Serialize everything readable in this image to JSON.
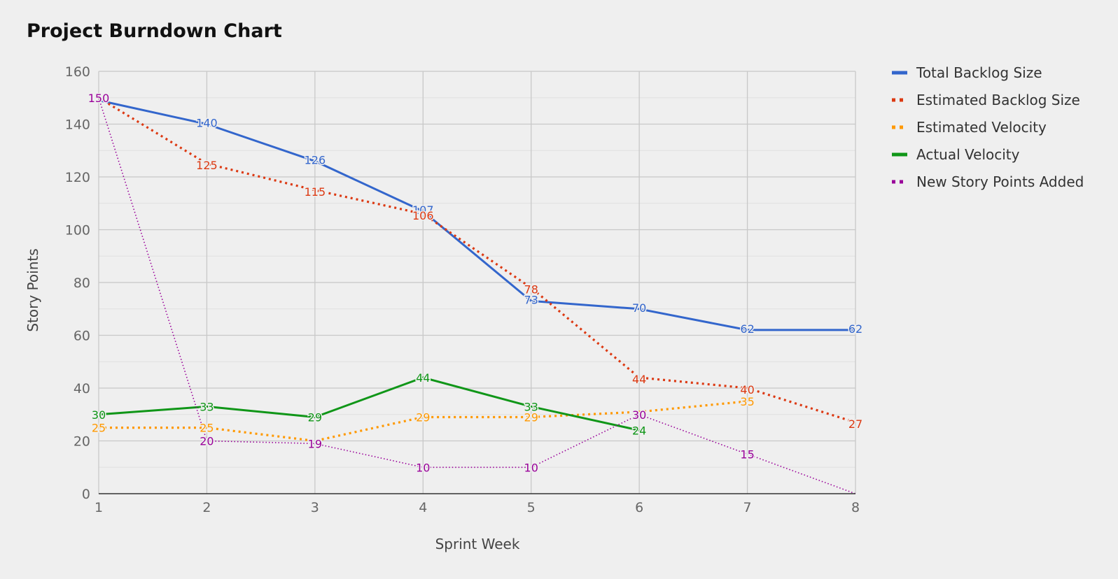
{
  "chart_data": {
    "type": "line",
    "title": "Project Burndown Chart",
    "xlabel": "Sprint Week",
    "ylabel": "Story Points",
    "x": [
      1,
      2,
      3,
      4,
      5,
      6,
      7,
      8
    ],
    "xlim": [
      1,
      8
    ],
    "ylim": [
      0,
      160
    ],
    "yticks": [
      0,
      20,
      40,
      60,
      80,
      100,
      120,
      140,
      160
    ],
    "grid": true,
    "legend_position": "right",
    "series": [
      {
        "name": "Total Backlog Size",
        "color": "#3366cc",
        "style": "solid",
        "values": [
          149,
          140,
          126,
          107,
          73,
          70,
          62,
          62
        ],
        "labels": [
          "",
          "140",
          "126",
          "107",
          "73",
          "70",
          "62",
          "62"
        ]
      },
      {
        "name": "Estimated Backlog Size",
        "color": "#dc3912",
        "style": "dotted",
        "values": [
          150,
          125,
          115,
          106,
          78,
          44,
          40,
          27
        ],
        "labels": [
          "",
          "125",
          "115",
          "106",
          "78",
          "44",
          "40",
          "27"
        ]
      },
      {
        "name": "Estimated Velocity",
        "color": "#ff9900",
        "style": "dotted",
        "values": [
          25,
          25,
          20,
          29,
          29,
          31,
          35,
          null
        ],
        "labels": [
          "25",
          "25",
          "",
          "29",
          "29",
          "",
          "35",
          ""
        ]
      },
      {
        "name": "Actual Velocity",
        "color": "#109618",
        "style": "solid",
        "values": [
          30,
          33,
          29,
          44,
          33,
          24,
          null,
          null
        ],
        "labels": [
          "30",
          "33",
          "29",
          "44",
          "33",
          "24",
          "",
          ""
        ]
      },
      {
        "name": "New Story Points Added",
        "color": "#990099",
        "style": "thin-dotted",
        "values": [
          150,
          20,
          19,
          10,
          10,
          30,
          15,
          0
        ],
        "labels": [
          "150",
          "20",
          "19",
          "10",
          "10",
          "30",
          "15",
          ""
        ]
      }
    ]
  }
}
